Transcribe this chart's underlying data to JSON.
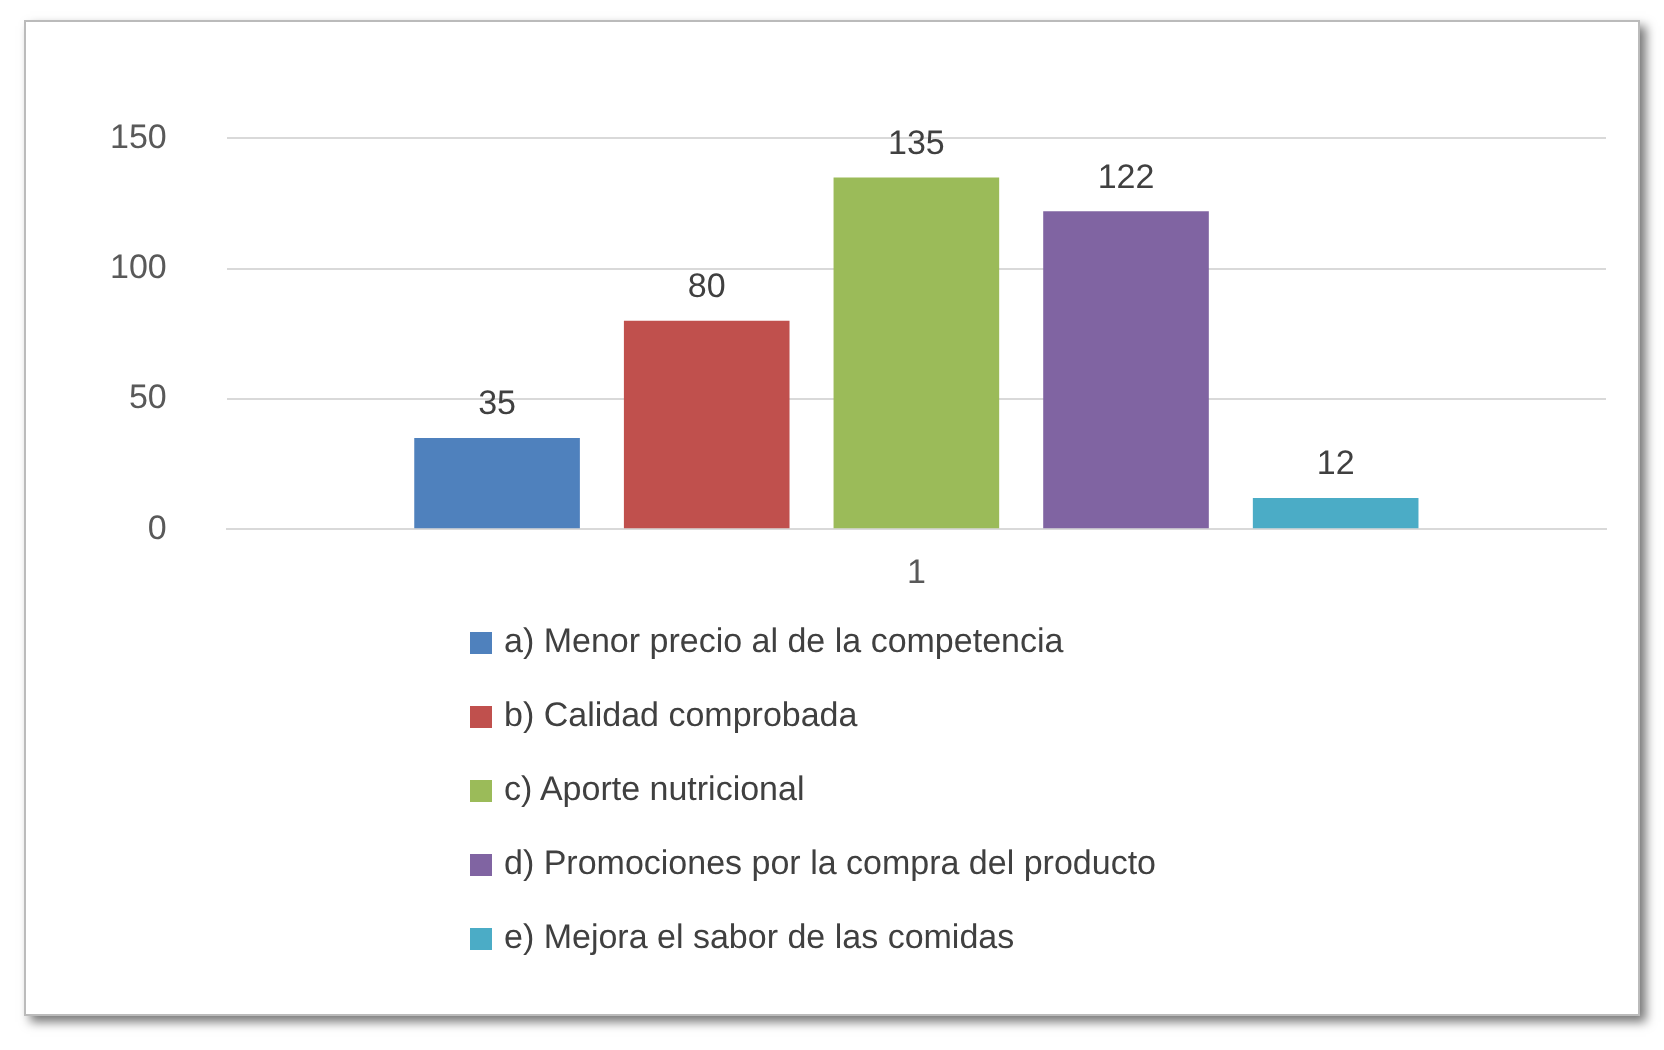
{
  "chart_data": {
    "type": "bar",
    "categories": [
      "1"
    ],
    "series": [
      {
        "name": "a) Menor precio al de la competencia",
        "color": "#4f81bd",
        "values": [
          35
        ]
      },
      {
        "name": "b) Calidad comprobada",
        "color": "#c0504d",
        "values": [
          80
        ]
      },
      {
        "name": "c) Aporte nutricional",
        "color": "#9bbb59",
        "values": [
          135
        ]
      },
      {
        "name": "d) Promociones por la compra del producto",
        "color": "#8064a2",
        "values": [
          122
        ]
      },
      {
        "name": "e) Mejora el sabor de las comidas",
        "color": "#4bacc6",
        "values": [
          12
        ]
      }
    ],
    "ylim": [
      0,
      150
    ],
    "yticks": [
      0,
      50,
      100,
      150
    ],
    "grid": "y",
    "legend": "bottom",
    "data_labels": true
  }
}
